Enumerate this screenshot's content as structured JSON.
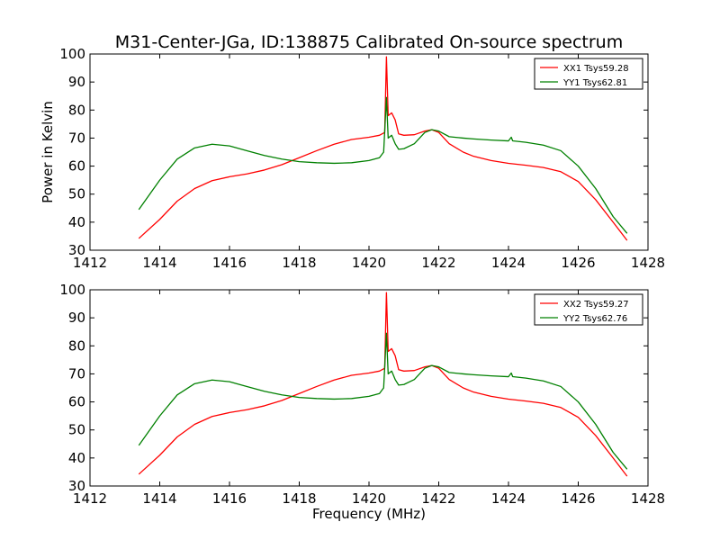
{
  "title": "M31-Center-JGa, ID:138875 Calibrated On-source spectrum",
  "colors": {
    "xx": "#ff0000",
    "yy": "#008000"
  },
  "chart_data": [
    {
      "type": "line",
      "xlabel": "",
      "ylabel": "Power in Kelvin",
      "xlim": [
        1412,
        1428
      ],
      "ylim": [
        30,
        100
      ],
      "xticks": [
        1412,
        1414,
        1416,
        1418,
        1420,
        1422,
        1424,
        1426,
        1428
      ],
      "yticks": [
        30,
        40,
        50,
        60,
        70,
        80,
        90,
        100
      ],
      "legend": "top-right",
      "series": [
        {
          "name": "XX1 Tsys59.28",
          "color": "#ff0000",
          "points": [
            [
              1413.4,
              34.2
            ],
            [
              1414.0,
              41.0
            ],
            [
              1414.5,
              47.5
            ],
            [
              1415.0,
              52.0
            ],
            [
              1415.5,
              54.8
            ],
            [
              1416.0,
              56.2
            ],
            [
              1416.5,
              57.2
            ],
            [
              1417.0,
              58.6
            ],
            [
              1417.5,
              60.5
            ],
            [
              1418.0,
              63.0
            ],
            [
              1418.5,
              65.5
            ],
            [
              1419.0,
              67.8
            ],
            [
              1419.5,
              69.5
            ],
            [
              1420.0,
              70.3
            ],
            [
              1420.3,
              71.0
            ],
            [
              1420.45,
              72.0
            ],
            [
              1420.5,
              99.0
            ],
            [
              1420.55,
              78.0
            ],
            [
              1420.65,
              79.0
            ],
            [
              1420.75,
              76.5
            ],
            [
              1420.85,
              71.5
            ],
            [
              1421.0,
              71.0
            ],
            [
              1421.3,
              71.2
            ],
            [
              1421.6,
              72.5
            ],
            [
              1421.8,
              73.0
            ],
            [
              1422.0,
              72.0
            ],
            [
              1422.3,
              68.0
            ],
            [
              1422.7,
              65.0
            ],
            [
              1423.0,
              63.5
            ],
            [
              1423.5,
              62.0
            ],
            [
              1424.0,
              61.0
            ],
            [
              1424.5,
              60.3
            ],
            [
              1425.0,
              59.5
            ],
            [
              1425.5,
              58.0
            ],
            [
              1426.0,
              54.5
            ],
            [
              1426.5,
              48.0
            ],
            [
              1427.0,
              40.0
            ],
            [
              1427.4,
              33.5
            ]
          ]
        },
        {
          "name": "YY1 Tsys62.81",
          "color": "#008000",
          "points": [
            [
              1413.4,
              44.5
            ],
            [
              1414.0,
              55.0
            ],
            [
              1414.5,
              62.5
            ],
            [
              1415.0,
              66.5
            ],
            [
              1415.5,
              67.8
            ],
            [
              1416.0,
              67.2
            ],
            [
              1416.5,
              65.5
            ],
            [
              1417.0,
              63.8
            ],
            [
              1417.5,
              62.5
            ],
            [
              1418.0,
              61.6
            ],
            [
              1418.5,
              61.2
            ],
            [
              1419.0,
              61.0
            ],
            [
              1419.5,
              61.2
            ],
            [
              1420.0,
              62.0
            ],
            [
              1420.3,
              63.0
            ],
            [
              1420.42,
              65.0
            ],
            [
              1420.5,
              84.5
            ],
            [
              1420.55,
              70.0
            ],
            [
              1420.65,
              71.0
            ],
            [
              1420.75,
              68.0
            ],
            [
              1420.85,
              66.0
            ],
            [
              1421.0,
              66.2
            ],
            [
              1421.3,
              68.0
            ],
            [
              1421.6,
              72.0
            ],
            [
              1421.8,
              73.0
            ],
            [
              1422.0,
              72.5
            ],
            [
              1422.3,
              70.5
            ],
            [
              1422.7,
              70.0
            ],
            [
              1423.0,
              69.7
            ],
            [
              1423.5,
              69.3
            ],
            [
              1424.0,
              69.0
            ],
            [
              1424.08,
              70.3
            ],
            [
              1424.12,
              69.0
            ],
            [
              1424.5,
              68.5
            ],
            [
              1425.0,
              67.5
            ],
            [
              1425.5,
              65.5
            ],
            [
              1426.0,
              60.0
            ],
            [
              1426.5,
              52.0
            ],
            [
              1427.0,
              42.0
            ],
            [
              1427.4,
              36.0
            ]
          ]
        }
      ]
    },
    {
      "type": "line",
      "xlabel": "Frequency (MHz)",
      "ylabel": "",
      "xlim": [
        1412,
        1428
      ],
      "ylim": [
        30,
        100
      ],
      "xticks": [
        1412,
        1414,
        1416,
        1418,
        1420,
        1422,
        1424,
        1426,
        1428
      ],
      "yticks": [
        30,
        40,
        50,
        60,
        70,
        80,
        90,
        100
      ],
      "legend": "top-right",
      "series": [
        {
          "name": "XX2 Tsys59.27",
          "color": "#ff0000",
          "points": [
            [
              1413.4,
              34.2
            ],
            [
              1414.0,
              41.0
            ],
            [
              1414.5,
              47.5
            ],
            [
              1415.0,
              52.0
            ],
            [
              1415.5,
              54.8
            ],
            [
              1416.0,
              56.2
            ],
            [
              1416.5,
              57.2
            ],
            [
              1417.0,
              58.6
            ],
            [
              1417.5,
              60.5
            ],
            [
              1418.0,
              63.0
            ],
            [
              1418.5,
              65.5
            ],
            [
              1419.0,
              67.8
            ],
            [
              1419.5,
              69.5
            ],
            [
              1420.0,
              70.3
            ],
            [
              1420.3,
              71.0
            ],
            [
              1420.45,
              72.0
            ],
            [
              1420.5,
              99.0
            ],
            [
              1420.55,
              78.0
            ],
            [
              1420.65,
              79.0
            ],
            [
              1420.75,
              76.5
            ],
            [
              1420.85,
              71.5
            ],
            [
              1421.0,
              71.0
            ],
            [
              1421.3,
              71.2
            ],
            [
              1421.6,
              72.5
            ],
            [
              1421.8,
              73.0
            ],
            [
              1422.0,
              72.0
            ],
            [
              1422.3,
              68.0
            ],
            [
              1422.7,
              65.0
            ],
            [
              1423.0,
              63.5
            ],
            [
              1423.5,
              62.0
            ],
            [
              1424.0,
              61.0
            ],
            [
              1424.5,
              60.3
            ],
            [
              1425.0,
              59.5
            ],
            [
              1425.5,
              58.0
            ],
            [
              1426.0,
              54.5
            ],
            [
              1426.5,
              48.0
            ],
            [
              1427.0,
              40.0
            ],
            [
              1427.4,
              33.5
            ]
          ]
        },
        {
          "name": "YY2 Tsys62.76",
          "color": "#008000",
          "points": [
            [
              1413.4,
              44.5
            ],
            [
              1414.0,
              55.0
            ],
            [
              1414.5,
              62.5
            ],
            [
              1415.0,
              66.5
            ],
            [
              1415.5,
              67.8
            ],
            [
              1416.0,
              67.2
            ],
            [
              1416.5,
              65.5
            ],
            [
              1417.0,
              63.8
            ],
            [
              1417.5,
              62.5
            ],
            [
              1418.0,
              61.6
            ],
            [
              1418.5,
              61.2
            ],
            [
              1419.0,
              61.0
            ],
            [
              1419.5,
              61.2
            ],
            [
              1420.0,
              62.0
            ],
            [
              1420.3,
              63.0
            ],
            [
              1420.42,
              65.0
            ],
            [
              1420.5,
              84.5
            ],
            [
              1420.55,
              70.0
            ],
            [
              1420.65,
              71.0
            ],
            [
              1420.75,
              68.0
            ],
            [
              1420.85,
              66.0
            ],
            [
              1421.0,
              66.2
            ],
            [
              1421.3,
              68.0
            ],
            [
              1421.6,
              72.0
            ],
            [
              1421.8,
              73.0
            ],
            [
              1422.0,
              72.5
            ],
            [
              1422.3,
              70.5
            ],
            [
              1422.7,
              70.0
            ],
            [
              1423.0,
              69.7
            ],
            [
              1423.5,
              69.3
            ],
            [
              1424.0,
              69.0
            ],
            [
              1424.08,
              70.3
            ],
            [
              1424.12,
              69.0
            ],
            [
              1424.5,
              68.5
            ],
            [
              1425.0,
              67.5
            ],
            [
              1425.5,
              65.5
            ],
            [
              1426.0,
              60.0
            ],
            [
              1426.5,
              52.0
            ],
            [
              1427.0,
              42.0
            ],
            [
              1427.4,
              36.0
            ]
          ]
        }
      ]
    }
  ]
}
